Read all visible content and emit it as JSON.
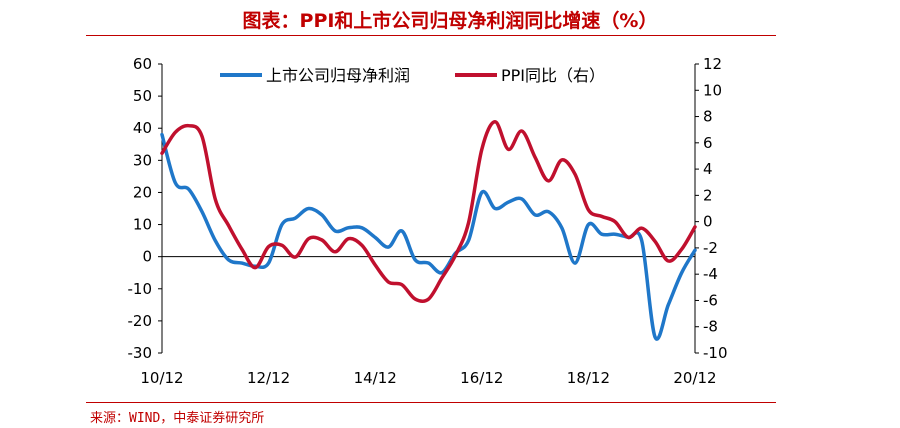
{
  "header": {
    "title": "图表：PPI和上市公司归母净利润同比增速（%）"
  },
  "footer": {
    "source": "来源：WIND，中泰证券研究所"
  },
  "chart_data": {
    "type": "line",
    "x_ticks": [
      "10/12",
      "12/12",
      "14/12",
      "16/12",
      "18/12",
      "20/12"
    ],
    "x_range": [
      "2010-12",
      "2020-12"
    ],
    "left_axis": {
      "ylim": [
        -30,
        60
      ],
      "ticks": [
        "60",
        "50",
        "40",
        "30",
        "20",
        "10",
        "0",
        "-10",
        "-20",
        "-30"
      ]
    },
    "right_axis": {
      "ylim": [
        -10,
        12
      ],
      "ticks": [
        "12",
        "10",
        "8",
        "6",
        "4",
        "2",
        "0",
        "-2",
        "-4",
        "-6",
        "-8",
        "-10"
      ]
    },
    "legend_position": "top",
    "series": [
      {
        "name": "上市公司归母净利润",
        "axis": "left",
        "color": "#1f77c9",
        "x": [
          "2010-12",
          "2011-03",
          "2011-06",
          "2011-09",
          "2011-12",
          "2012-03",
          "2012-06",
          "2012-09",
          "2012-12",
          "2013-03",
          "2013-06",
          "2013-09",
          "2013-12",
          "2014-03",
          "2014-06",
          "2014-09",
          "2014-12",
          "2015-03",
          "2015-06",
          "2015-09",
          "2015-12",
          "2016-03",
          "2016-06",
          "2016-09",
          "2016-12",
          "2017-03",
          "2017-06",
          "2017-09",
          "2017-12",
          "2018-03",
          "2018-06",
          "2018-09",
          "2018-12",
          "2019-03",
          "2019-06",
          "2019-09",
          "2019-12",
          "2020-03",
          "2020-06",
          "2020-09",
          "2020-12"
        ],
        "values": [
          38,
          23,
          21,
          14,
          5,
          -1,
          -2,
          -3,
          -2,
          10,
          12,
          15,
          13,
          8,
          9,
          9,
          6,
          3,
          8,
          -1,
          -2,
          -5,
          1,
          5,
          20,
          15,
          17,
          18,
          13,
          14,
          9,
          -2,
          10,
          7,
          7,
          6,
          5,
          -25,
          -15,
          -5,
          2
        ]
      },
      {
        "name": "PPI同比（右）",
        "axis": "right",
        "color": "#c0102e",
        "x": [
          "2010-12",
          "2011-03",
          "2011-06",
          "2011-09",
          "2011-12",
          "2012-03",
          "2012-06",
          "2012-09",
          "2012-12",
          "2013-03",
          "2013-06",
          "2013-09",
          "2013-12",
          "2014-03",
          "2014-06",
          "2014-09",
          "2014-12",
          "2015-03",
          "2015-06",
          "2015-09",
          "2015-12",
          "2016-03",
          "2016-06",
          "2016-09",
          "2016-12",
          "2017-03",
          "2017-06",
          "2017-09",
          "2017-12",
          "2018-03",
          "2018-06",
          "2018-09",
          "2018-12",
          "2019-03",
          "2019-06",
          "2019-09",
          "2019-12",
          "2020-03",
          "2020-06",
          "2020-09",
          "2020-12"
        ],
        "values": [
          5.2,
          6.8,
          7.3,
          6.5,
          1.7,
          -0.3,
          -2.1,
          -3.5,
          -1.9,
          -1.8,
          -2.7,
          -1.3,
          -1.4,
          -2.3,
          -1.3,
          -1.8,
          -3.3,
          -4.6,
          -4.8,
          -5.9,
          -5.9,
          -4.3,
          -2.6,
          -0.1,
          5.5,
          7.6,
          5.5,
          6.9,
          4.9,
          3.1,
          4.7,
          3.6,
          0.9,
          0.4,
          0.0,
          -1.2,
          -0.5,
          -1.5,
          -3.0,
          -2.1,
          -0.4
        ]
      }
    ]
  }
}
